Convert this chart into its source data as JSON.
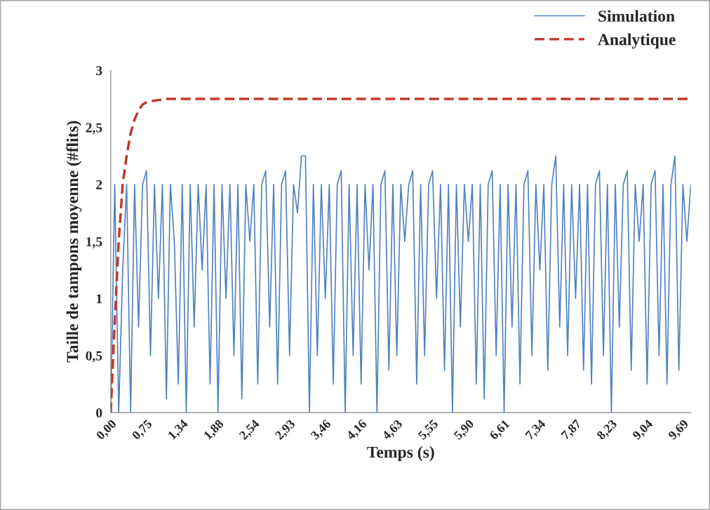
{
  "chart_data": {
    "type": "line",
    "xlabel": "Temps (s)",
    "ylabel": "Taille de tampons moyenne (#flits)",
    "categories": [
      "0,00",
      null,
      null,
      null,
      null,
      null,
      null,
      null,
      null,
      "0,75",
      null,
      null,
      null,
      null,
      null,
      null,
      null,
      null,
      "1,34",
      null,
      null,
      null,
      null,
      null,
      null,
      null,
      null,
      "1,88",
      null,
      null,
      null,
      null,
      null,
      null,
      null,
      null,
      "2,54",
      null,
      null,
      null,
      null,
      null,
      null,
      null,
      null,
      "2,93",
      null,
      null,
      null,
      null,
      null,
      null,
      null,
      null,
      "3,46",
      null,
      null,
      null,
      null,
      null,
      null,
      null,
      null,
      "4,16",
      null,
      null,
      null,
      null,
      null,
      null,
      null,
      null,
      "4,63",
      null,
      null,
      null,
      null,
      null,
      null,
      null,
      null,
      "5,55",
      null,
      null,
      null,
      null,
      null,
      null,
      null,
      null,
      "5,90",
      null,
      null,
      null,
      null,
      null,
      null,
      null,
      null,
      "6,61",
      null,
      null,
      null,
      null,
      null,
      null,
      null,
      null,
      "7,34",
      null,
      null,
      null,
      null,
      null,
      null,
      null,
      null,
      "7,87",
      null,
      null,
      null,
      null,
      null,
      null,
      null,
      null,
      "8,23",
      null,
      null,
      null,
      null,
      null,
      null,
      null,
      null,
      "9,04",
      null,
      null,
      null,
      null,
      null,
      null,
      null,
      null,
      "9,69",
      null,
      null
    ],
    "series": [
      {
        "name": "Simulation",
        "color": "#4f81bd",
        "line_style": "solid",
        "values": [
          0,
          2,
          0,
          1.25,
          2,
          0,
          2,
          0.75,
          2,
          2.12,
          0.5,
          2,
          1,
          2,
          0.12,
          2,
          1.5,
          0.25,
          2,
          0,
          2,
          0.75,
          2,
          1.25,
          2,
          0.25,
          2,
          0,
          2,
          1,
          2,
          0.5,
          2,
          0.12,
          2,
          1.5,
          2,
          0.25,
          2,
          2.12,
          0.75,
          2,
          0.25,
          2,
          2.12,
          0.5,
          2,
          1.75,
          2.25,
          2.25,
          0,
          2,
          0.5,
          2,
          1,
          2,
          0.25,
          2,
          2.12,
          0,
          2,
          0.5,
          2,
          0.25,
          2,
          1.25,
          2,
          0,
          2,
          2.12,
          0.37,
          2,
          0.5,
          2,
          1.5,
          2,
          2.12,
          0.25,
          2,
          0.5,
          2,
          2.12,
          1,
          2,
          0.37,
          2,
          0,
          2,
          0.75,
          2,
          1.5,
          2,
          0.25,
          2,
          0.12,
          2,
          2.12,
          0.5,
          2,
          0,
          2,
          0.75,
          2,
          0.25,
          2,
          2.12,
          0.5,
          2,
          1.25,
          2,
          0.37,
          2,
          2.25,
          0.75,
          2,
          0.5,
          2,
          1,
          2,
          0.37,
          2,
          0.25,
          2,
          2.12,
          0.5,
          2,
          0,
          2,
          0.75,
          2,
          2.12,
          0.37,
          2,
          1.5,
          2,
          0.25,
          2,
          2.12,
          0.5,
          2,
          0.25,
          2,
          2.25,
          0.37,
          2,
          1.5,
          2
        ]
      },
      {
        "name": "Analytique",
        "color": "#c0392b",
        "line_style": "dashed",
        "values": [
          0,
          0.8,
          1.5,
          2.0,
          2.25,
          2.45,
          2.57,
          2.65,
          2.7,
          2.72,
          2.73,
          2.735,
          2.74,
          2.745,
          2.75,
          2.75,
          2.75,
          2.75,
          2.75,
          2.75,
          2.75,
          2.75,
          2.75,
          2.75,
          2.75,
          2.75,
          2.75,
          2.75,
          2.75,
          2.75,
          2.75,
          2.75,
          2.75,
          2.75,
          2.75,
          2.75,
          2.75,
          2.75,
          2.75,
          2.75,
          2.75,
          2.75,
          2.75,
          2.75,
          2.75,
          2.75,
          2.75,
          2.75,
          2.75,
          2.75,
          2.75,
          2.75,
          2.75,
          2.75,
          2.75,
          2.75,
          2.75,
          2.75,
          2.75,
          2.75,
          2.75,
          2.75,
          2.75,
          2.75,
          2.75,
          2.75,
          2.75,
          2.75,
          2.75,
          2.75,
          2.75,
          2.75,
          2.75,
          2.75,
          2.75,
          2.75,
          2.75,
          2.75,
          2.75,
          2.75,
          2.75,
          2.75,
          2.75,
          2.75,
          2.75,
          2.75,
          2.75,
          2.75,
          2.75,
          2.75,
          2.75,
          2.75,
          2.75,
          2.75,
          2.75,
          2.75,
          2.75,
          2.75,
          2.75,
          2.75,
          2.75,
          2.75,
          2.75,
          2.75,
          2.75,
          2.75,
          2.75,
          2.75,
          2.75,
          2.75,
          2.75,
          2.75,
          2.75,
          2.75,
          2.75,
          2.75,
          2.75,
          2.75,
          2.75,
          2.75,
          2.75,
          2.75,
          2.75,
          2.75,
          2.75,
          2.75,
          2.75,
          2.75,
          2.75,
          2.75,
          2.75,
          2.75,
          2.75,
          2.75,
          2.75,
          2.75,
          2.75,
          2.75,
          2.75,
          2.75,
          2.75,
          2.75,
          2.75,
          2.75,
          2.75,
          2.75,
          2.75
        ]
      }
    ],
    "ylim": [
      0,
      3
    ],
    "yticks": [
      0,
      {
        "value": 0.5,
        "label": "0,5"
      },
      1,
      {
        "value": 1.5,
        "label": "1,5"
      },
      2,
      {
        "value": 2.5,
        "label": "2,5"
      },
      3
    ],
    "grid": false,
    "legend": "top right",
    "marker": "none"
  }
}
